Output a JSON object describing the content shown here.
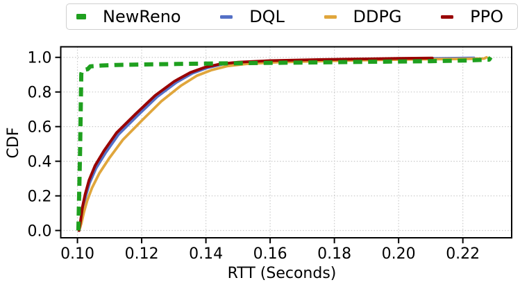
{
  "chart_data": {
    "type": "line",
    "title": "",
    "xlabel": "RTT (Seconds)",
    "ylabel": "CDF",
    "xlim": [
      0.0948,
      0.2352
    ],
    "ylim": [
      -0.042,
      1.061
    ],
    "xticks": {
      "values": [
        0.1,
        0.12,
        0.14,
        0.16,
        0.18,
        0.2,
        0.22
      ],
      "labels": [
        "0.10",
        "0.12",
        "0.14",
        "0.16",
        "0.18",
        "0.20",
        "0.22"
      ]
    },
    "yticks": {
      "values": [
        0.0,
        0.2,
        0.4,
        0.6,
        0.8,
        1.0
      ],
      "labels": [
        "0.0",
        "0.2",
        "0.4",
        "0.6",
        "0.8",
        "1.0"
      ]
    },
    "grid": {
      "visible": true,
      "style": "dotted",
      "color": "#c9c9c9"
    },
    "axis_color": "#000000",
    "background": "#ffffff",
    "legend": {
      "position": "top-outside",
      "border_color": "#cfcfcf",
      "order": [
        "NewReno",
        "DQL",
        "DDPG",
        "PPO"
      ]
    },
    "draw_order": [
      "DQL",
      "DDPG",
      "PPO",
      "NewReno"
    ],
    "series": [
      {
        "name": "NewReno",
        "color": "#1fa01f",
        "style": "dashed",
        "line_width": 6,
        "points": [
          [
            0.1003,
            0.0
          ],
          [
            0.1008,
            0.45
          ],
          [
            0.1012,
            0.905
          ],
          [
            0.1015,
            0.925
          ],
          [
            0.1032,
            0.932
          ],
          [
            0.104,
            0.948
          ],
          [
            0.1075,
            0.953
          ],
          [
            0.112,
            0.956
          ],
          [
            0.12,
            0.959
          ],
          [
            0.135,
            0.963
          ],
          [
            0.15,
            0.966
          ],
          [
            0.17,
            0.97
          ],
          [
            0.19,
            0.974
          ],
          [
            0.21,
            0.978
          ],
          [
            0.221,
            0.982
          ],
          [
            0.2282,
            0.987
          ],
          [
            0.2287,
            1.0
          ]
        ]
      },
      {
        "name": "DQL",
        "color": "#5470c6",
        "style": "solid",
        "line_width": 3.8,
        "points": [
          [
            0.1005,
            0.0
          ],
          [
            0.101,
            0.055
          ],
          [
            0.1017,
            0.13
          ],
          [
            0.1026,
            0.2
          ],
          [
            0.1038,
            0.275
          ],
          [
            0.1058,
            0.36
          ],
          [
            0.1088,
            0.45
          ],
          [
            0.1128,
            0.555
          ],
          [
            0.1188,
            0.665
          ],
          [
            0.1248,
            0.772
          ],
          [
            0.1308,
            0.855
          ],
          [
            0.1358,
            0.908
          ],
          [
            0.1402,
            0.938
          ],
          [
            0.1452,
            0.96
          ],
          [
            0.1505,
            0.97
          ],
          [
            0.1605,
            0.979
          ],
          [
            0.1755,
            0.985
          ],
          [
            0.1905,
            0.989
          ],
          [
            0.2055,
            0.993
          ],
          [
            0.2155,
            0.995
          ],
          [
            0.2235,
            0.997
          ]
        ]
      },
      {
        "name": "DDPG",
        "color": "#e0a63c",
        "style": "solid",
        "line_width": 3.8,
        "points": [
          [
            0.1005,
            0.0
          ],
          [
            0.1012,
            0.04
          ],
          [
            0.102,
            0.105
          ],
          [
            0.103,
            0.17
          ],
          [
            0.1045,
            0.245
          ],
          [
            0.1068,
            0.33
          ],
          [
            0.11,
            0.42
          ],
          [
            0.1142,
            0.525
          ],
          [
            0.1202,
            0.638
          ],
          [
            0.1262,
            0.748
          ],
          [
            0.1322,
            0.836
          ],
          [
            0.1372,
            0.894
          ],
          [
            0.1418,
            0.927
          ],
          [
            0.1468,
            0.95
          ],
          [
            0.1525,
            0.962
          ],
          [
            0.1625,
            0.972
          ],
          [
            0.1775,
            0.979
          ],
          [
            0.1925,
            0.985
          ],
          [
            0.2075,
            0.989
          ],
          [
            0.22,
            0.991
          ],
          [
            0.2266,
            0.993
          ],
          [
            0.2274,
            1.0
          ]
        ]
      },
      {
        "name": "PPO",
        "color": "#990000",
        "style": "solid",
        "line_width": 4,
        "points": [
          [
            0.1005,
            0.0
          ],
          [
            0.101,
            0.06
          ],
          [
            0.1016,
            0.14
          ],
          [
            0.1024,
            0.21
          ],
          [
            0.1036,
            0.29
          ],
          [
            0.1055,
            0.375
          ],
          [
            0.1083,
            0.462
          ],
          [
            0.1122,
            0.565
          ],
          [
            0.1182,
            0.675
          ],
          [
            0.1242,
            0.78
          ],
          [
            0.1302,
            0.862
          ],
          [
            0.1352,
            0.913
          ],
          [
            0.1396,
            0.942
          ],
          [
            0.1446,
            0.962
          ],
          [
            0.15,
            0.972
          ],
          [
            0.16,
            0.981
          ],
          [
            0.175,
            0.987
          ],
          [
            0.19,
            0.991
          ],
          [
            0.2,
            0.994
          ],
          [
            0.2105,
            0.996
          ]
        ]
      }
    ]
  }
}
